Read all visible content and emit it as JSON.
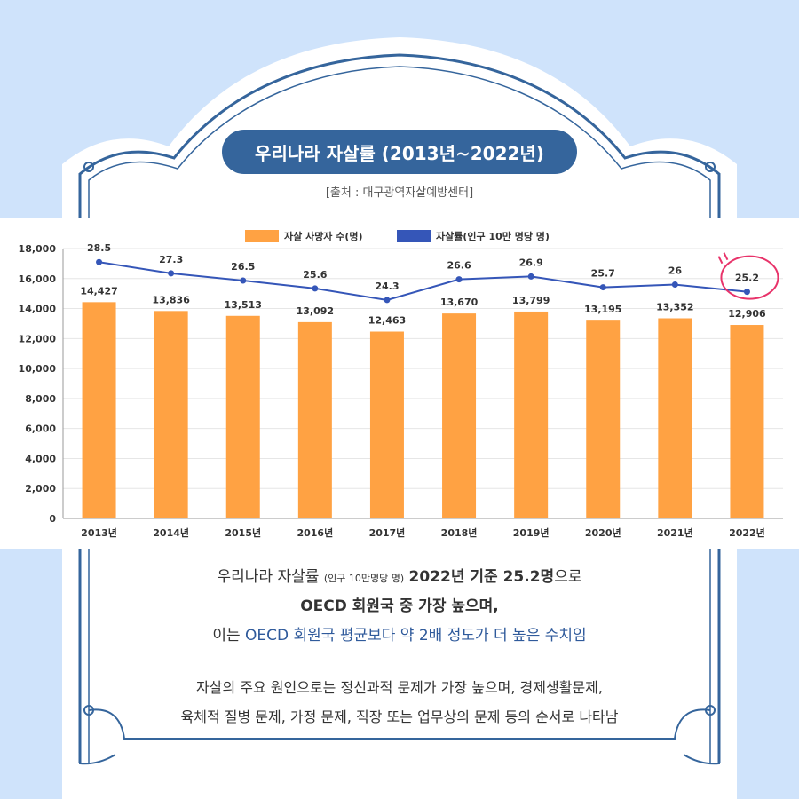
{
  "title": "우리나라 자살률 (2013년~2022년)",
  "source": "[출처 : 대구광역자살예방센터]",
  "chart_data": {
    "type": "bar",
    "categories": [
      "2013년",
      "2014년",
      "2015년",
      "2016년",
      "2017년",
      "2018년",
      "2019년",
      "2020년",
      "2021년",
      "2022년"
    ],
    "series": [
      {
        "name": "자살 사망자 수(명)",
        "type": "bar",
        "color": "#ffa243",
        "values": [
          14427,
          13836,
          13513,
          13092,
          12463,
          13670,
          13799,
          13195,
          13352,
          12906
        ],
        "labels": [
          "14,427",
          "13,836",
          "13,513",
          "13,092",
          "12,463",
          "13,670",
          "13,799",
          "13,195",
          "13,352",
          "12,906"
        ]
      },
      {
        "name": "자살률(인구 10만 명당 명)",
        "type": "line",
        "color": "#3556b8",
        "values": [
          28.5,
          27.3,
          26.5,
          25.6,
          24.3,
          26.6,
          26.9,
          25.7,
          26,
          25.2
        ],
        "labels": [
          "28.5",
          "27.3",
          "26.5",
          "25.6",
          "24.3",
          "26.6",
          "26.9",
          "25.7",
          "26",
          "25.2"
        ],
        "plot_y": [
          17100,
          16350,
          15870,
          15340,
          14570,
          15950,
          16140,
          15420,
          15600,
          15120
        ]
      }
    ],
    "ylim": [
      0,
      18000
    ],
    "yticks": [
      0,
      2000,
      4000,
      6000,
      8000,
      10000,
      12000,
      14000,
      16000,
      18000
    ],
    "ytick_labels": [
      "0",
      "2,000",
      "4,000",
      "6,000",
      "8,000",
      "10,000",
      "12,000",
      "14,000",
      "16,000",
      "18,000"
    ],
    "grid": true,
    "legend": "top-center",
    "highlight": {
      "category": "2022년",
      "color": "#e8336a"
    }
  },
  "summary": {
    "l1_a": "우리나라 자살률",
    "l1_small": "(인구 10만명당 명)",
    "l1_b": "2022년 기준 25.2명",
    "l1_c": "으로",
    "l2": "OECD 회원국 중 가장 높으며,",
    "l3_a": "이는",
    "l3_b": "OECD 회원국 평균보다 약 2배 정도가 더 높은 수치임"
  },
  "causes": {
    "l1": "자살의 주요 원인으로는 정신과적 문제가 가장 높으며, 경제생활문제,",
    "l2": "육체적 질병 문제, 가정 문제, 직장 또는 업무상의 문제 등의 순서로 나타남"
  },
  "colors": {
    "frame": "#35659c",
    "background": "#cfe3fb",
    "bar": "#ffa243",
    "line": "#3556b8"
  }
}
